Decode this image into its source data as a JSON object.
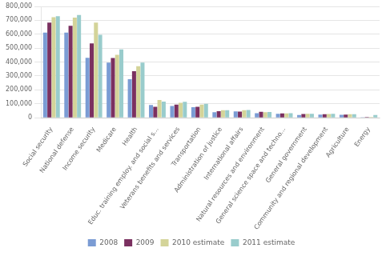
{
  "chart_data": {
    "type": "bar",
    "categories": [
      "Social security",
      "National defense",
      "Income security",
      "Medicare",
      "Health",
      "Educ. training employ. and social s...",
      "Veterans benefits and services",
      "Transportation",
      "Administration of justice",
      "International affairs",
      "Natural resources and environment",
      "General science space and techno...",
      "General government",
      "Community and regional development",
      "Agriculture",
      "Energy"
    ],
    "series": [
      {
        "name": "2008",
        "color": "#7b9cd4",
        "values": [
          612000,
          612000,
          431000,
          396000,
          277000,
          91000,
          84000,
          76000,
          40000,
          45000,
          33000,
          29000,
          20000,
          23000,
          21000,
          1000
        ]
      },
      {
        "name": "2009",
        "color": "#7b3060",
        "values": [
          683000,
          661000,
          534000,
          430000,
          334000,
          79000,
          95000,
          79000,
          47000,
          44000,
          43000,
          32000,
          27000,
          25000,
          22000,
          5000
        ]
      },
      {
        "name": "2010 estimate",
        "color": "#d4d499",
        "values": [
          722000,
          719000,
          683000,
          452000,
          371000,
          128000,
          108000,
          94000,
          54000,
          55000,
          40000,
          32000,
          28000,
          27000,
          26000,
          6000
        ]
      },
      {
        "name": "2011 estimate",
        "color": "#99cccc",
        "values": [
          730000,
          738000,
          596000,
          491000,
          396000,
          116000,
          115000,
          100000,
          55000,
          56000,
          42000,
          33000,
          29000,
          28000,
          26000,
          20000
        ]
      }
    ],
    "ylim": [
      0,
      800000
    ],
    "yticks": [
      0,
      {
        "value": 100000,
        "label": "100,000"
      },
      {
        "value": 200000,
        "label": "200,000"
      },
      {
        "value": 300000,
        "label": "300,000"
      },
      {
        "value": 400000,
        "label": "400,000"
      },
      {
        "value": 500000,
        "label": "500,000"
      },
      {
        "value": 600000,
        "label": "600,000"
      },
      {
        "value": 700000,
        "label": "700,000"
      },
      {
        "value": 800000,
        "label": "800,000"
      }
    ],
    "grid": true,
    "legend": "bottom"
  }
}
